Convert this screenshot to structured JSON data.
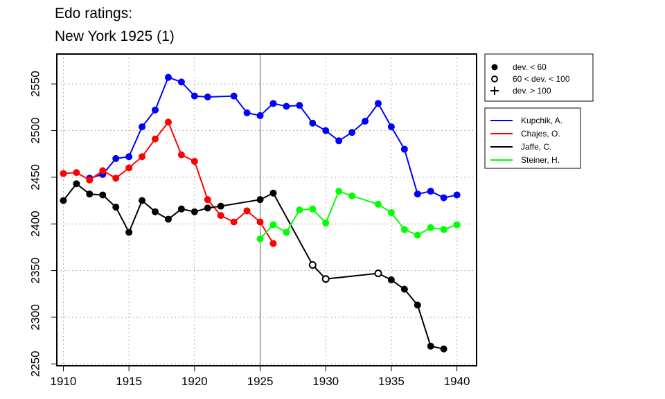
{
  "title_lines": [
    "Edo ratings:",
    "New York 1925 (1)"
  ],
  "chart_data": {
    "type": "line",
    "title": "Edo ratings: New York 1925 (1)",
    "xlim": [
      1909.5,
      1941.5
    ],
    "ylim": [
      2248,
      2582
    ],
    "x_ticks": [
      1910,
      1915,
      1920,
      1925,
      1930,
      1935,
      1940
    ],
    "y_ticks": [
      2250,
      2300,
      2350,
      2400,
      2450,
      2500,
      2550
    ],
    "grid": "dotted",
    "reference_line_x": 1925,
    "deviation_legend": [
      {
        "marker": "filled-circle",
        "label": "dev. < 60"
      },
      {
        "marker": "open-circle",
        "label": "60 < dev. < 100"
      },
      {
        "marker": "plus",
        "label": "dev. > 100"
      }
    ],
    "series": [
      {
        "name": "Kupchik, A.",
        "color": "#0000ff",
        "points": [
          [
            1912,
            2449,
            "filled"
          ],
          [
            1913,
            2453,
            "filled"
          ],
          [
            1914,
            2470,
            "filled"
          ],
          [
            1915,
            2472,
            "filled"
          ],
          [
            1916,
            2504,
            "filled"
          ],
          [
            1917,
            2522,
            "filled"
          ],
          [
            1918,
            2557,
            "filled"
          ],
          [
            1919,
            2552,
            "filled"
          ],
          [
            1920,
            2537,
            "filled"
          ],
          [
            1921,
            2536,
            "filled"
          ],
          [
            1923,
            2537,
            "filled"
          ],
          [
            1924,
            2519,
            "filled"
          ],
          [
            1925,
            2516,
            "filled"
          ],
          [
            1926,
            2529,
            "filled"
          ],
          [
            1927,
            2526,
            "filled"
          ],
          [
            1928,
            2527,
            "filled"
          ],
          [
            1929,
            2508,
            "filled"
          ],
          [
            1930,
            2500,
            "filled"
          ],
          [
            1931,
            2489,
            "filled"
          ],
          [
            1932,
            2498,
            "filled"
          ],
          [
            1933,
            2510,
            "filled"
          ],
          [
            1934,
            2529,
            "filled"
          ],
          [
            1935,
            2504,
            "filled"
          ],
          [
            1936,
            2480,
            "filled"
          ],
          [
            1937,
            2432,
            "filled"
          ],
          [
            1938,
            2435,
            "filled"
          ],
          [
            1939,
            2428,
            "filled"
          ],
          [
            1940,
            2431,
            "filled"
          ]
        ]
      },
      {
        "name": "Chajes, O.",
        "color": "#ff0000",
        "points": [
          [
            1910,
            2454,
            "filled"
          ],
          [
            1911,
            2455,
            "filled"
          ],
          [
            1912,
            2447,
            "filled"
          ],
          [
            1913,
            2457,
            "filled"
          ],
          [
            1914,
            2449,
            "filled"
          ],
          [
            1915,
            2460,
            "filled"
          ],
          [
            1916,
            2472,
            "filled"
          ],
          [
            1917,
            2491,
            "filled"
          ],
          [
            1918,
            2509,
            "filled"
          ],
          [
            1919,
            2474,
            "filled"
          ],
          [
            1920,
            2467,
            "filled"
          ],
          [
            1921,
            2426,
            "filled"
          ],
          [
            1922,
            2409,
            "filled"
          ],
          [
            1923,
            2402,
            "filled"
          ],
          [
            1924,
            2414,
            "filled"
          ],
          [
            1925,
            2402,
            "filled"
          ],
          [
            1926,
            2379,
            "filled"
          ]
        ]
      },
      {
        "name": "Jaffe, C.",
        "color": "#000000",
        "points": [
          [
            1910,
            2425,
            "filled"
          ],
          [
            1911,
            2443,
            "filled"
          ],
          [
            1912,
            2432,
            "filled"
          ],
          [
            1913,
            2431,
            "filled"
          ],
          [
            1914,
            2418,
            "filled"
          ],
          [
            1915,
            2391,
            "filled"
          ],
          [
            1916,
            2425,
            "filled"
          ],
          [
            1917,
            2413,
            "filled"
          ],
          [
            1918,
            2405,
            "filled"
          ],
          [
            1919,
            2416,
            "filled"
          ],
          [
            1920,
            2413,
            "filled"
          ],
          [
            1921,
            2417,
            "filled"
          ],
          [
            1922,
            2419,
            "filled"
          ],
          [
            1925,
            2426,
            "filled"
          ],
          [
            1926,
            2433,
            "filled"
          ],
          [
            1929,
            2356,
            "open"
          ],
          [
            1930,
            2341,
            "open"
          ],
          [
            1934,
            2347,
            "open"
          ],
          [
            1935,
            2340,
            "filled"
          ],
          [
            1936,
            2330,
            "filled"
          ],
          [
            1937,
            2313,
            "filled"
          ],
          [
            1938,
            2269,
            "filled"
          ],
          [
            1939,
            2266,
            "filled"
          ]
        ]
      },
      {
        "name": "Steiner, H.",
        "color": "#00ff00",
        "points": [
          [
            1925,
            2384,
            "filled"
          ],
          [
            1926,
            2399,
            "filled"
          ],
          [
            1927,
            2391,
            "filled"
          ],
          [
            1928,
            2415,
            "filled"
          ],
          [
            1929,
            2416,
            "filled"
          ],
          [
            1930,
            2401,
            "filled"
          ],
          [
            1931,
            2435,
            "filled"
          ],
          [
            1932,
            2430,
            "filled"
          ],
          [
            1934,
            2421,
            "filled"
          ],
          [
            1935,
            2412,
            "filled"
          ],
          [
            1936,
            2394,
            "filled"
          ],
          [
            1937,
            2388,
            "filled"
          ],
          [
            1938,
            2396,
            "filled"
          ],
          [
            1939,
            2394,
            "filled"
          ],
          [
            1940,
            2399,
            "filled"
          ]
        ]
      }
    ]
  }
}
